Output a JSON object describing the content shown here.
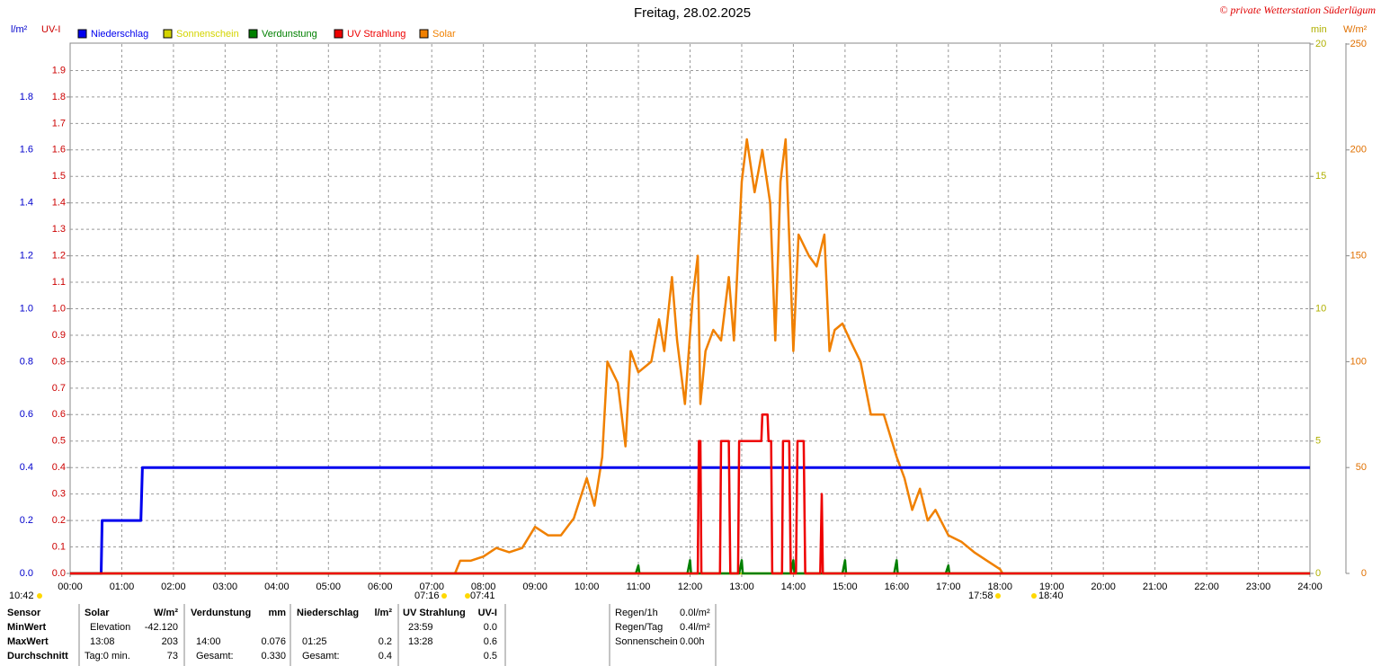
{
  "chart_data": {
    "type": "line",
    "title": "Freitag, 28.02.2025",
    "copyright": "© private Wetterstation Süderlügum",
    "axis_labels": {
      "y": "l/m²",
      "uv": "UV-I",
      "y2": "min",
      "y3": "W/m²"
    },
    "xlim": [
      0,
      24
    ],
    "xticks": [
      {
        "value": 0,
        "label": "00:00"
      },
      {
        "value": 1,
        "label": "01:00"
      },
      {
        "value": 2,
        "label": "02:00"
      },
      {
        "value": 3,
        "label": "03:00"
      },
      {
        "value": 4,
        "label": "04:00"
      },
      {
        "value": 5,
        "label": "05:00"
      },
      {
        "value": 6,
        "label": "06:00"
      },
      {
        "value": 7,
        "label": "07:00"
      },
      {
        "value": 8,
        "label": "08:00"
      },
      {
        "value": 9,
        "label": "09:00"
      },
      {
        "value": 10,
        "label": "10:00"
      },
      {
        "value": 11,
        "label": "11:00"
      },
      {
        "value": 12,
        "label": "12:00"
      },
      {
        "value": 13,
        "label": "13:00"
      },
      {
        "value": 14,
        "label": "14:00"
      },
      {
        "value": 15,
        "label": "15:00"
      },
      {
        "value": 16,
        "label": "16:00"
      },
      {
        "value": 17,
        "label": "17:00"
      },
      {
        "value": 18,
        "label": "18:00"
      },
      {
        "value": 19,
        "label": "19:00"
      },
      {
        "value": 20,
        "label": "20:00"
      },
      {
        "value": 21,
        "label": "21:00"
      },
      {
        "value": 22,
        "label": "22:00"
      },
      {
        "value": 23,
        "label": "23:00"
      },
      {
        "value": 24,
        "label": "24:00"
      }
    ],
    "ylim": [
      0,
      2
    ],
    "yticks": [
      {
        "value": 0,
        "label": "0.0"
      },
      0.2,
      0.4,
      0.6,
      0.8,
      {
        "value": 1,
        "label": "1.0"
      },
      1.2,
      1.4,
      1.6,
      1.8
    ],
    "uvlim": [
      0,
      2
    ],
    "uvticks": [
      {
        "value": 0,
        "label": "0.0"
      },
      0.1,
      0.2,
      0.3,
      0.4,
      0.5,
      0.6,
      0.7,
      0.8,
      0.9,
      {
        "value": 1,
        "label": "1.0"
      },
      1.1,
      1.2,
      1.3,
      1.4,
      1.5,
      1.6,
      1.7,
      1.8,
      1.9
    ],
    "y2lim": [
      0,
      20
    ],
    "y2ticks": [
      0,
      5,
      10,
      15,
      20
    ],
    "y3lim": [
      0,
      250
    ],
    "y3ticks": [
      0,
      50,
      100,
      150,
      200,
      250
    ],
    "grid": true,
    "series": [
      {
        "name": "Niederschlag",
        "color": "#0000ee",
        "axis": "y",
        "x": [
          0,
          0.6,
          0.62,
          1.37,
          1.4,
          24
        ],
        "values": [
          0,
          0,
          0.2,
          0.2,
          0.4,
          0.4
        ]
      },
      {
        "name": "Sonnenschein",
        "color": "#d4d400",
        "axis": "y2",
        "x": [
          0,
          24
        ],
        "values": [
          0,
          0
        ]
      },
      {
        "name": "Verdunstung",
        "color": "#008000",
        "axis": "y",
        "x": [
          0,
          10.95,
          11,
          11.02,
          11.95,
          12,
          12.02,
          12.95,
          13,
          13.02,
          13.95,
          14,
          14.02,
          14.95,
          15,
          15.02,
          15.95,
          16,
          16.02,
          16.95,
          17,
          17.02,
          24
        ],
        "values": [
          0,
          0,
          0.03,
          0,
          0,
          0.05,
          0,
          0,
          0.05,
          0,
          0,
          0.05,
          0,
          0,
          0.05,
          0,
          0,
          0.05,
          0,
          0,
          0.03,
          0,
          0
        ]
      },
      {
        "name": "UV Strahlung",
        "color": "#ee0000",
        "axis": "uv",
        "x": [
          0,
          12.15,
          12.17,
          12.2,
          12.22,
          12.58,
          12.6,
          12.75,
          12.78,
          12.93,
          12.95,
          13.38,
          13.4,
          13.5,
          13.52,
          13.57,
          13.59,
          13.78,
          13.8,
          13.92,
          13.95,
          14.05,
          14.08,
          14.2,
          14.23,
          14.52,
          14.55,
          14.57,
          24
        ],
        "values": [
          0,
          0,
          0.5,
          0.5,
          0,
          0,
          0.5,
          0.5,
          0,
          0,
          0.5,
          0.5,
          0.6,
          0.6,
          0.5,
          0.5,
          0,
          0,
          0.5,
          0.5,
          0,
          0,
          0.5,
          0.5,
          0,
          0,
          0.3,
          0,
          0
        ]
      },
      {
        "name": "Solar",
        "color": "#f08000",
        "axis": "y3",
        "x": [
          7.45,
          7.55,
          7.75,
          8,
          8.25,
          8.5,
          8.75,
          9,
          9.25,
          9.5,
          9.75,
          10,
          10.15,
          10.3,
          10.4,
          10.6,
          10.75,
          10.85,
          11,
          11.25,
          11.4,
          11.5,
          11.65,
          11.75,
          11.9,
          12.05,
          12.15,
          12.2,
          12.3,
          12.45,
          12.6,
          12.75,
          12.85,
          13,
          13.1,
          13.25,
          13.4,
          13.55,
          13.65,
          13.75,
          13.85,
          14,
          14.1,
          14.3,
          14.45,
          14.6,
          14.7,
          14.8,
          14.95,
          15.1,
          15.3,
          15.5,
          15.75,
          16,
          16.15,
          16.3,
          16.45,
          16.6,
          16.75,
          17,
          17.25,
          17.5,
          17.75,
          18,
          18.05
        ],
        "values": [
          0,
          6,
          6,
          8,
          12,
          10,
          12,
          22,
          18,
          18,
          26,
          45,
          32,
          55,
          100,
          90,
          60,
          105,
          95,
          100,
          120,
          105,
          140,
          110,
          80,
          130,
          150,
          80,
          105,
          115,
          110,
          140,
          110,
          185,
          205,
          180,
          200,
          175,
          110,
          185,
          205,
          105,
          160,
          150,
          145,
          160,
          105,
          115,
          118,
          110,
          100,
          75,
          75,
          55,
          45,
          30,
          40,
          25,
          30,
          18,
          15,
          10,
          6,
          2,
          0
        ]
      }
    ]
  },
  "sun": {
    "left": "10:42",
    "rise": "07:16",
    "dawn": "07:41",
    "set": "17:58",
    "dusk": "18:40"
  },
  "table": {
    "rows": [
      "Sensor",
      "MinWert",
      "MaxWert",
      "Durchschnitt"
    ],
    "columns": [
      {
        "header": "Solar",
        "unit": "W/m²",
        "min": [
          "Elevation",
          "-42.120"
        ],
        "max": [
          "13:08",
          "203"
        ],
        "avg": [
          "Tag:0 min.",
          "73"
        ]
      },
      {
        "header": "Verdunstung",
        "unit": "mm",
        "max": [
          "14:00",
          "0.076"
        ],
        "avg": [
          "Gesamt:",
          "0.330"
        ]
      },
      {
        "header": "Niederschlag",
        "unit": "l/m²",
        "max": [
          "01:25",
          "0.2"
        ],
        "avg": [
          "Gesamt:",
          "0.4"
        ]
      },
      {
        "header": "UV Strahlung",
        "unit": "UV-I",
        "min": [
          "23:59",
          "0.0"
        ],
        "max": [
          "13:28",
          "0.6"
        ],
        "avg": [
          "0.5"
        ]
      }
    ],
    "extra": [
      [
        "Regen/1h",
        "0.0l/m²"
      ],
      [
        "Regen/Tag",
        "0.4l/m²"
      ],
      [
        "Sonnenschein",
        "0.00h"
      ]
    ]
  }
}
